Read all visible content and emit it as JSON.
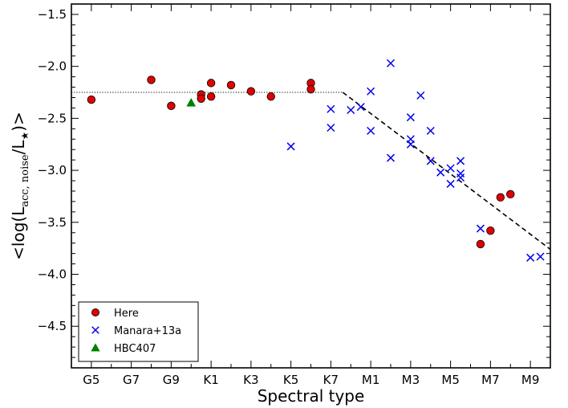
{
  "chart_data": {
    "type": "scatter",
    "xlabel": "Spectral type",
    "ylabel_parts": {
      "prefix": "<log(L",
      "sub1": "acc, noise",
      "mid": "/L",
      "sub2": "★",
      "suffix": ")>"
    },
    "x_ticks": [
      {
        "label": "G5",
        "pos": 0
      },
      {
        "label": "G7",
        "pos": 2
      },
      {
        "label": "G9",
        "pos": 4
      },
      {
        "label": "K1",
        "pos": 6
      },
      {
        "label": "K3",
        "pos": 8
      },
      {
        "label": "K5",
        "pos": 10
      },
      {
        "label": "K7",
        "pos": 12
      },
      {
        "label": "M1",
        "pos": 14
      },
      {
        "label": "M3",
        "pos": 16
      },
      {
        "label": "M5",
        "pos": 18
      },
      {
        "label": "M7",
        "pos": 20
      },
      {
        "label": "M9",
        "pos": 22
      }
    ],
    "y_ticks": [
      "−1.5",
      "−2.0",
      "−2.5",
      "−3.0",
      "−3.5",
      "−4.0",
      "−4.5"
    ],
    "y_tick_values": [
      -1.5,
      -2.0,
      -2.5,
      -3.0,
      -3.5,
      -4.0,
      -4.5
    ],
    "xlim": [
      -1,
      23
    ],
    "ylim": [
      -4.9,
      -1.4
    ],
    "grid": false,
    "legend_placement": "lower-left",
    "colors": {
      "here": "#e00000",
      "manara": "#0000ee",
      "hbc": "#008000",
      "fit": "#000000"
    },
    "series": [
      {
        "name": "Here",
        "marker": "circle",
        "points": [
          [
            0,
            -2.32
          ],
          [
            3,
            -2.13
          ],
          [
            4,
            -2.38
          ],
          [
            5.5,
            -2.27
          ],
          [
            5.5,
            -2.31
          ],
          [
            6,
            -2.16
          ],
          [
            6,
            -2.29
          ],
          [
            7,
            -2.18
          ],
          [
            8,
            -2.24
          ],
          [
            9,
            -2.29
          ],
          [
            11,
            -2.16
          ],
          [
            11,
            -2.22
          ],
          [
            19.5,
            -3.71
          ],
          [
            20,
            -3.58
          ],
          [
            20.5,
            -3.26
          ],
          [
            21,
            -3.23
          ]
        ]
      },
      {
        "name": "Manara+13a",
        "marker": "x",
        "points": [
          [
            10,
            -2.77
          ],
          [
            12,
            -2.41
          ],
          [
            12,
            -2.59
          ],
          [
            13,
            -2.42
          ],
          [
            13.5,
            -2.39
          ],
          [
            14,
            -2.24
          ],
          [
            14,
            -2.62
          ],
          [
            15,
            -1.97
          ],
          [
            15,
            -2.88
          ],
          [
            16,
            -2.49
          ],
          [
            16,
            -2.7
          ],
          [
            16,
            -2.75
          ],
          [
            16.5,
            -2.28
          ],
          [
            17,
            -2.62
          ],
          [
            17,
            -2.91
          ],
          [
            17.5,
            -3.02
          ],
          [
            18,
            -2.98
          ],
          [
            18,
            -3.13
          ],
          [
            18.5,
            -2.91
          ],
          [
            18.5,
            -3.03
          ],
          [
            18.5,
            -3.07
          ],
          [
            19.5,
            -3.56
          ],
          [
            22,
            -3.84
          ],
          [
            22.5,
            -3.83
          ]
        ]
      },
      {
        "name": "HBC407",
        "marker": "triangle",
        "points": [
          [
            5,
            -2.35
          ]
        ]
      }
    ],
    "fit_lines": [
      {
        "style": "dotted",
        "points": [
          [
            -1,
            -2.25
          ],
          [
            12.6,
            -2.25
          ]
        ]
      },
      {
        "style": "dashed",
        "points": [
          [
            12.6,
            -2.25
          ],
          [
            23,
            -3.76
          ]
        ]
      }
    ]
  }
}
